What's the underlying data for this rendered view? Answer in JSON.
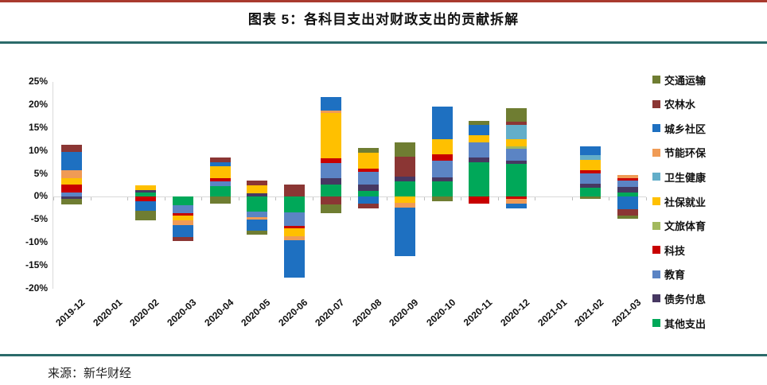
{
  "header": {
    "title": "图表 5：各科目支出对财政支出的贡献拆解"
  },
  "footer": {
    "source": "来源：新华财经"
  },
  "chart_data": {
    "type": "bar",
    "subtype": "stacked-column-with-negatives",
    "title": "图表 5：各科目支出对财政支出的贡献拆解",
    "xlabel": "",
    "ylabel": "",
    "ylim": [
      -20,
      25
    ],
    "ytick_step": 5,
    "ytick_labels": [
      "25%",
      "20%",
      "15%",
      "10%",
      "5%",
      "0%",
      "-5%",
      "-10%",
      "-15%",
      "-20%"
    ],
    "grid": "zero-line-only",
    "legend_position": "right",
    "stacking_note": "positive and negative stacks both start at zero; last legend series sits closest to zero",
    "categories": [
      "2019-12",
      "2020-01",
      "2020-02",
      "2020-03",
      "2020-04",
      "2020-05",
      "2020-06",
      "2020-07",
      "2020-08",
      "2020-09",
      "2020-10",
      "2020-11",
      "2020-12",
      "2021-01",
      "2021-02",
      "2021-03"
    ],
    "series": [
      {
        "name": "交通运输",
        "color": "#6F7D32",
        "values": [
          -1.2,
          0,
          -2.1,
          0,
          -1.4,
          -1.0,
          0,
          -2.0,
          1.0,
          3.2,
          -1.0,
          0.9,
          3.0,
          0,
          -0.5,
          -0.8
        ]
      },
      {
        "name": "农林水",
        "color": "#8B3634",
        "values": [
          1.6,
          0,
          0,
          -0.8,
          0.9,
          1.0,
          2.6,
          -1.6,
          -1.2,
          4.3,
          0,
          0,
          0.6,
          0,
          0,
          -1.3
        ]
      },
      {
        "name": "城乡社区",
        "color": "#1E70C1",
        "values": [
          4.0,
          0,
          -2.0,
          -2.6,
          0.9,
          -2.4,
          -8.0,
          2.9,
          -1.4,
          -10.5,
          7.2,
          2.3,
          -1.1,
          0,
          1.9,
          -2.7
        ]
      },
      {
        "name": "节能环保",
        "color": "#F09B55",
        "values": [
          1.7,
          0,
          0,
          -1.0,
          0,
          -0.5,
          -0.9,
          0.6,
          0,
          -1.1,
          0,
          0,
          -1.0,
          0,
          0,
          0.7
        ]
      },
      {
        "name": "卫生健康",
        "color": "#63AEC9",
        "values": [
          0,
          0,
          0,
          0,
          0,
          0,
          0,
          0,
          0,
          0,
          0,
          0,
          3.2,
          0,
          1.0,
          0
        ]
      },
      {
        "name": "社保就业",
        "color": "#FFC000",
        "values": [
          1.4,
          0,
          1.0,
          -1.2,
          2.6,
          1.8,
          -1.7,
          9.8,
          3.5,
          -1.3,
          3.2,
          1.6,
          1.5,
          0,
          2.2,
          0
        ]
      },
      {
        "name": "文旅体育",
        "color": "#A2B95D",
        "values": [
          0,
          0,
          0,
          0,
          0,
          0,
          0,
          0,
          0,
          0,
          0,
          0,
          0.5,
          0,
          0,
          0
        ]
      },
      {
        "name": "科技",
        "color": "#C80000",
        "values": [
          1.7,
          0,
          -1.0,
          -0.5,
          0.7,
          0,
          -0.6,
          1.0,
          0.6,
          0,
          1.5,
          -1.4,
          -0.5,
          0,
          0.7,
          0.4
        ]
      },
      {
        "name": "教育",
        "color": "#5B84C4",
        "values": [
          1.0,
          0,
          0,
          -1.7,
          1.0,
          -1.2,
          -2.9,
          3.3,
          2.8,
          0,
          3.5,
          3.2,
          2.6,
          0,
          2.2,
          1.4
        ]
      },
      {
        "name": "债务付息",
        "color": "#473862",
        "values": [
          -0.4,
          0,
          0.5,
          0,
          0,
          0.7,
          0,
          1.5,
          1.4,
          1.0,
          0.9,
          1.0,
          0.8,
          0,
          0.9,
          1.2
        ]
      },
      {
        "name": "其他支出",
        "color": "#00A859",
        "values": [
          0,
          0,
          1.0,
          -1.8,
          2.4,
          -3.2,
          -3.4,
          2.6,
          1.3,
          3.4,
          3.4,
          7.6,
          7.1,
          0,
          2.0,
          1.0
        ]
      }
    ]
  }
}
